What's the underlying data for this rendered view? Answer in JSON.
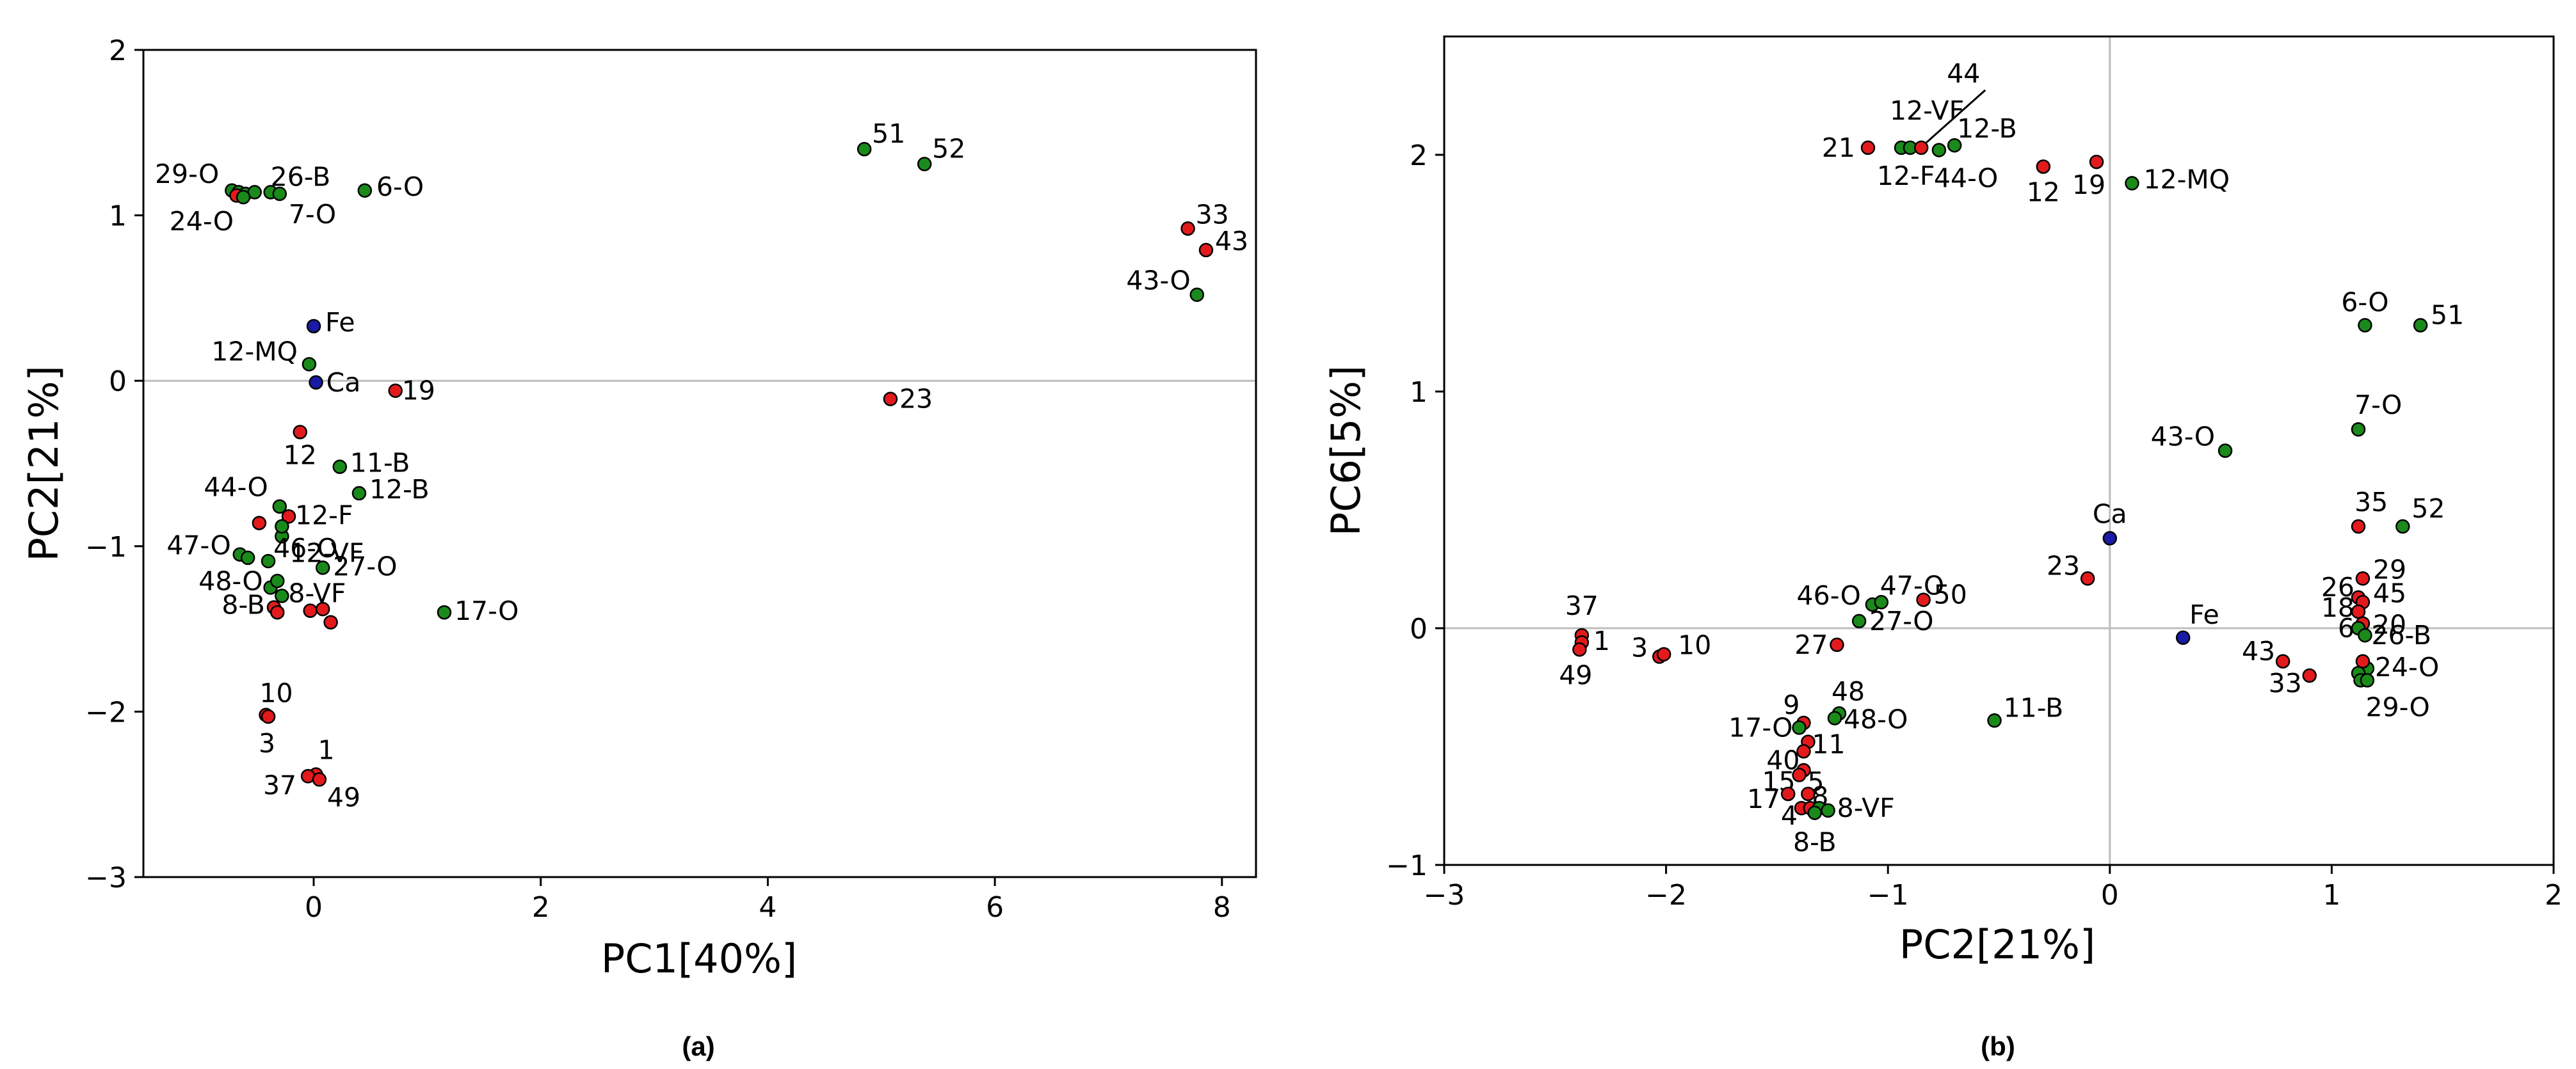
{
  "colors": {
    "red": "#e31a1c",
    "green": "#1a8a1a",
    "blue": "#1a1aa8",
    "edge": "#000000",
    "zero_line": "#bdbdbd"
  },
  "chart_data": [
    {
      "type": "scatter",
      "caption": "(a)",
      "xlabel": "PC1[40%]",
      "ylabel": "PC2[21%]",
      "xlim": [
        -1.5,
        8.3
      ],
      "ylim": [
        -3,
        2
      ],
      "xticks": [
        0,
        2,
        4,
        6,
        8
      ],
      "yticks": [
        -3,
        -2,
        -1,
        0,
        1,
        2
      ],
      "zero_lines": {
        "horizontal": true,
        "vertical": false
      },
      "points": [
        {
          "label": "29-O",
          "x": -0.72,
          "y": 1.15,
          "color": "green"
        },
        {
          "label": "",
          "x": -0.66,
          "y": 1.14,
          "color": "green"
        },
        {
          "label": "",
          "x": -0.6,
          "y": 1.13,
          "color": "green"
        },
        {
          "label": "",
          "x": -0.52,
          "y": 1.14,
          "color": "green"
        },
        {
          "label": "",
          "x": -0.68,
          "y": 1.12,
          "color": "red"
        },
        {
          "label": "24-O",
          "x": -0.62,
          "y": 1.11,
          "color": "green"
        },
        {
          "label": "26-B",
          "x": -0.38,
          "y": 1.14,
          "color": "green"
        },
        {
          "label": "7-O",
          "x": -0.3,
          "y": 1.13,
          "color": "green"
        },
        {
          "label": "6-O",
          "x": 0.45,
          "y": 1.15,
          "color": "green"
        },
        {
          "label": "51",
          "x": 4.85,
          "y": 1.4,
          "color": "green"
        },
        {
          "label": "52",
          "x": 5.38,
          "y": 1.31,
          "color": "green"
        },
        {
          "label": "33",
          "x": 7.7,
          "y": 0.92,
          "color": "red"
        },
        {
          "label": "43",
          "x": 7.86,
          "y": 0.79,
          "color": "red"
        },
        {
          "label": "43-O",
          "x": 7.78,
          "y": 0.52,
          "color": "green"
        },
        {
          "label": "Fe",
          "x": 0.0,
          "y": 0.33,
          "color": "blue"
        },
        {
          "label": "12-MQ",
          "x": -0.04,
          "y": 0.1,
          "color": "green"
        },
        {
          "label": "Ca",
          "x": 0.02,
          "y": -0.01,
          "color": "blue"
        },
        {
          "label": "19",
          "x": 0.72,
          "y": -0.06,
          "color": "red"
        },
        {
          "label": "23",
          "x": 5.08,
          "y": -0.11,
          "color": "red"
        },
        {
          "label": "12",
          "x": -0.12,
          "y": -0.31,
          "color": "red"
        },
        {
          "label": "11-B",
          "x": 0.23,
          "y": -0.52,
          "color": "green"
        },
        {
          "label": "12-B",
          "x": 0.4,
          "y": -0.68,
          "color": "green"
        },
        {
          "label": "44-O",
          "x": -0.3,
          "y": -0.76,
          "color": "green"
        },
        {
          "label": "",
          "x": -0.48,
          "y": -0.86,
          "color": "red"
        },
        {
          "label": "12-F",
          "x": -0.22,
          "y": -0.82,
          "color": "red"
        },
        {
          "label": "12-VF",
          "x": -0.28,
          "y": -0.94,
          "color": "green"
        },
        {
          "label": "",
          "x": -0.28,
          "y": -0.88,
          "color": "green"
        },
        {
          "label": "47-O",
          "x": -0.65,
          "y": -1.05,
          "color": "green"
        },
        {
          "label": "",
          "x": -0.58,
          "y": -1.07,
          "color": "green"
        },
        {
          "label": "46-O",
          "x": -0.4,
          "y": -1.09,
          "color": "green"
        },
        {
          "label": "27-O",
          "x": 0.08,
          "y": -1.13,
          "color": "green"
        },
        {
          "label": "48-O",
          "x": -0.38,
          "y": -1.25,
          "color": "green"
        },
        {
          "label": "",
          "x": -0.32,
          "y": -1.21,
          "color": "green"
        },
        {
          "label": "8-VF",
          "x": -0.28,
          "y": -1.3,
          "color": "green"
        },
        {
          "label": "8-B",
          "x": -0.35,
          "y": -1.37,
          "color": "red"
        },
        {
          "label": "",
          "x": -0.32,
          "y": -1.4,
          "color": "red"
        },
        {
          "label": "",
          "x": -0.03,
          "y": -1.39,
          "color": "red"
        },
        {
          "label": "",
          "x": 0.08,
          "y": -1.38,
          "color": "red"
        },
        {
          "label": "",
          "x": 0.15,
          "y": -1.46,
          "color": "red"
        },
        {
          "label": "17-O",
          "x": 1.15,
          "y": -1.4,
          "color": "green"
        },
        {
          "label": "10",
          "x": -0.42,
          "y": -2.02,
          "color": "red"
        },
        {
          "label": "3",
          "x": -0.4,
          "y": -2.03,
          "color": "red"
        },
        {
          "label": "1",
          "x": 0.02,
          "y": -2.38,
          "color": "red"
        },
        {
          "label": "37",
          "x": -0.05,
          "y": -2.39,
          "color": "red"
        },
        {
          "label": "49",
          "x": 0.05,
          "y": -2.41,
          "color": "red"
        }
      ]
    },
    {
      "type": "scatter",
      "caption": "(b)",
      "xlabel": "PC2[21%]",
      "ylabel": "PC6[5%]",
      "xlim": [
        -3,
        2
      ],
      "ylim": [
        -1,
        2.5
      ],
      "xticks": [
        -3,
        -2,
        -1,
        0,
        1,
        2
      ],
      "yticks": [
        -1,
        0,
        1,
        2
      ],
      "zero_lines": {
        "horizontal": true,
        "vertical": true
      },
      "points": [
        {
          "label": "21",
          "x": -1.09,
          "y": 2.03,
          "color": "red"
        },
        {
          "label": "12-VF",
          "x": -0.94,
          "y": 2.03,
          "color": "green"
        },
        {
          "label": "12-F",
          "x": -0.9,
          "y": 2.03,
          "color": "green"
        },
        {
          "label": "44",
          "x": -0.85,
          "y": 2.03,
          "color": "red"
        },
        {
          "label": "44-O",
          "x": -0.77,
          "y": 2.02,
          "color": "green"
        },
        {
          "label": "12-B",
          "x": -0.7,
          "y": 2.04,
          "color": "green"
        },
        {
          "label": "12",
          "x": -0.3,
          "y": 1.95,
          "color": "red"
        },
        {
          "label": "19",
          "x": -0.06,
          "y": 1.97,
          "color": "red"
        },
        {
          "label": "12-MQ",
          "x": 0.1,
          "y": 1.88,
          "color": "green"
        },
        {
          "label": "6-O",
          "x": 1.15,
          "y": 1.28,
          "color": "green"
        },
        {
          "label": "51",
          "x": 1.4,
          "y": 1.28,
          "color": "green"
        },
        {
          "label": "7-O",
          "x": 1.12,
          "y": 0.84,
          "color": "green"
        },
        {
          "label": "43-O",
          "x": 0.52,
          "y": 0.75,
          "color": "green"
        },
        {
          "label": "35",
          "x": 1.12,
          "y": 0.43,
          "color": "red"
        },
        {
          "label": "52",
          "x": 1.32,
          "y": 0.43,
          "color": "green"
        },
        {
          "label": "Ca",
          "x": 0.0,
          "y": 0.38,
          "color": "blue"
        },
        {
          "label": "23",
          "x": -0.1,
          "y": 0.21,
          "color": "red"
        },
        {
          "label": "29",
          "x": 1.14,
          "y": 0.21,
          "color": "red"
        },
        {
          "label": "26",
          "x": 1.12,
          "y": 0.13,
          "color": "red"
        },
        {
          "label": "45",
          "x": 1.14,
          "y": 0.11,
          "color": "red"
        },
        {
          "label": "18",
          "x": 1.12,
          "y": 0.07,
          "color": "red"
        },
        {
          "label": "20",
          "x": 1.14,
          "y": 0.02,
          "color": "red"
        },
        {
          "label": "6",
          "x": 1.12,
          "y": 0.0,
          "color": "green"
        },
        {
          "label": "26-B",
          "x": 1.15,
          "y": -0.03,
          "color": "green"
        },
        {
          "label": "Fe",
          "x": 0.33,
          "y": -0.04,
          "color": "blue"
        },
        {
          "label": "43",
          "x": 0.78,
          "y": -0.14,
          "color": "red"
        },
        {
          "label": "33",
          "x": 0.9,
          "y": -0.2,
          "color": "red"
        },
        {
          "label": "24-O",
          "x": 1.16,
          "y": -0.17,
          "color": "green"
        },
        {
          "label": "",
          "x": 1.14,
          "y": -0.14,
          "color": "red"
        },
        {
          "label": "",
          "x": 1.12,
          "y": -0.19,
          "color": "green"
        },
        {
          "label": "29-O",
          "x": 1.13,
          "y": -0.22,
          "color": "green"
        },
        {
          "label": "",
          "x": 1.16,
          "y": -0.22,
          "color": "green"
        },
        {
          "label": "46-O",
          "x": -1.07,
          "y": 0.1,
          "color": "green"
        },
        {
          "label": "47-O",
          "x": -1.03,
          "y": 0.11,
          "color": "green"
        },
        {
          "label": "50",
          "x": -0.84,
          "y": 0.12,
          "color": "red"
        },
        {
          "label": "27-O",
          "x": -1.13,
          "y": 0.03,
          "color": "green"
        },
        {
          "label": "27",
          "x": -1.23,
          "y": -0.07,
          "color": "red"
        },
        {
          "label": "37",
          "x": -2.38,
          "y": -0.03,
          "color": "red"
        },
        {
          "label": "1",
          "x": -2.38,
          "y": -0.06,
          "color": "red"
        },
        {
          "label": "49",
          "x": -2.39,
          "y": -0.09,
          "color": "red"
        },
        {
          "label": "3",
          "x": -2.03,
          "y": -0.12,
          "color": "red"
        },
        {
          "label": "10",
          "x": -2.01,
          "y": -0.11,
          "color": "red"
        },
        {
          "label": "11-B",
          "x": -0.52,
          "y": -0.39,
          "color": "green"
        },
        {
          "label": "9",
          "x": -1.38,
          "y": -0.4,
          "color": "red"
        },
        {
          "label": "48",
          "x": -1.22,
          "y": -0.36,
          "color": "green"
        },
        {
          "label": "48-O",
          "x": -1.24,
          "y": -0.38,
          "color": "green"
        },
        {
          "label": "17-O",
          "x": -1.4,
          "y": -0.42,
          "color": "green"
        },
        {
          "label": "11",
          "x": -1.36,
          "y": -0.48,
          "color": "red"
        },
        {
          "label": "40",
          "x": -1.38,
          "y": -0.52,
          "color": "red"
        },
        {
          "label": "5",
          "x": -1.38,
          "y": -0.6,
          "color": "red"
        },
        {
          "label": "15",
          "x": -1.4,
          "y": -0.62,
          "color": "red"
        },
        {
          "label": "17",
          "x": -1.45,
          "y": -0.7,
          "color": "red"
        },
        {
          "label": "8",
          "x": -1.36,
          "y": -0.7,
          "color": "red"
        },
        {
          "label": "4",
          "x": -1.39,
          "y": -0.76,
          "color": "red"
        },
        {
          "label": "",
          "x": -1.35,
          "y": -0.76,
          "color": "red"
        },
        {
          "label": "",
          "x": -1.31,
          "y": -0.76,
          "color": "green"
        },
        {
          "label": "8-VF",
          "x": -1.27,
          "y": -0.77,
          "color": "green"
        },
        {
          "label": "8-B",
          "x": -1.33,
          "y": -0.78,
          "color": "green"
        }
      ]
    }
  ]
}
